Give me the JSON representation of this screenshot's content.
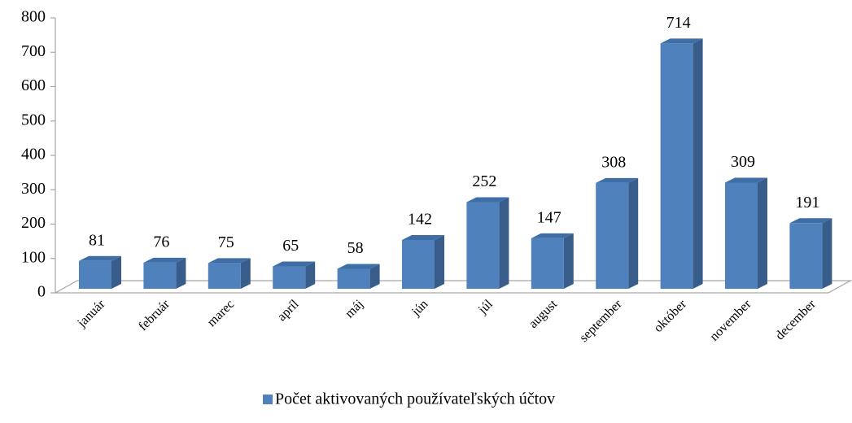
{
  "chart_data": {
    "type": "bar3d",
    "categories": [
      "január",
      "február",
      "marec",
      "apríl",
      "máj",
      "jún",
      "júl",
      "august",
      "september",
      "október",
      "november",
      "december"
    ],
    "series": [
      {
        "name": "Počet aktivovaných používateľských účtov",
        "color": "#4f81bd",
        "values": [
          81,
          76,
          75,
          65,
          58,
          142,
          252,
          147,
          308,
          714,
          309,
          191
        ]
      }
    ],
    "ylim": [
      0,
      800
    ],
    "yticks": [
      0,
      100,
      200,
      300,
      400,
      500,
      600,
      700,
      800
    ],
    "grid": false,
    "data_labels": true,
    "legend": "bottom"
  }
}
